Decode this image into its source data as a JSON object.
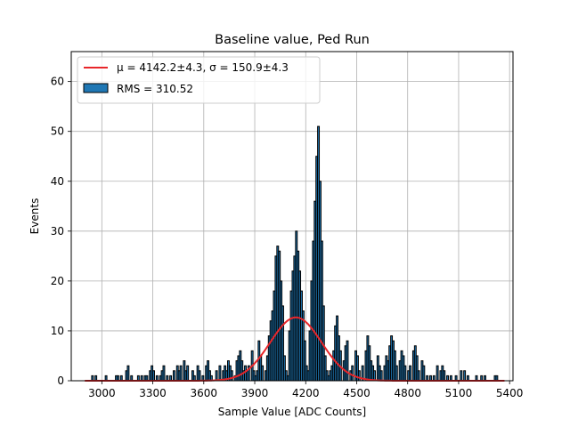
{
  "chart_data": {
    "type": "bar",
    "title": "Baseline value, Ped Run",
    "xlabel": "Sample Value [ADC Counts]",
    "ylabel": "Events",
    "xlim": [
      2820,
      5420
    ],
    "ylim": [
      0,
      66
    ],
    "grid": true,
    "legend_position": "upper-left",
    "xticks": [
      3000,
      3300,
      3600,
      3900,
      4200,
      4500,
      4800,
      5100,
      5400
    ],
    "yticks": [
      0,
      10,
      20,
      30,
      40,
      50,
      60
    ],
    "legend": [
      {
        "kind": "line",
        "label_prefix": "μ = 4142.2±4.3, ",
        "label_suffix": "σ = 150.9±4.3",
        "color": "#e8262a"
      },
      {
        "kind": "patch",
        "label": "RMS = 310.52",
        "color": "#1f77b4"
      }
    ],
    "histogram": {
      "color": "#1f77b4",
      "edgecolor": "#000000",
      "bins": [
        [
          2940,
          1
        ],
        [
          2960,
          1
        ],
        [
          3020,
          1
        ],
        [
          3080,
          1
        ],
        [
          3090,
          1
        ],
        [
          3110,
          1
        ],
        [
          3140,
          2
        ],
        [
          3150,
          3
        ],
        [
          3170,
          1
        ],
        [
          3210,
          1
        ],
        [
          3230,
          1
        ],
        [
          3250,
          1
        ],
        [
          3260,
          1
        ],
        [
          3280,
          2
        ],
        [
          3290,
          3
        ],
        [
          3300,
          2
        ],
        [
          3320,
          1
        ],
        [
          3340,
          1
        ],
        [
          3350,
          2
        ],
        [
          3360,
          3
        ],
        [
          3380,
          1
        ],
        [
          3400,
          1
        ],
        [
          3420,
          2
        ],
        [
          3440,
          3
        ],
        [
          3450,
          2
        ],
        [
          3460,
          3
        ],
        [
          3480,
          4
        ],
        [
          3490,
          2
        ],
        [
          3500,
          3
        ],
        [
          3530,
          2
        ],
        [
          3540,
          1
        ],
        [
          3560,
          3
        ],
        [
          3570,
          2
        ],
        [
          3590,
          1
        ],
        [
          3610,
          3
        ],
        [
          3620,
          4
        ],
        [
          3630,
          2
        ],
        [
          3640,
          1
        ],
        [
          3670,
          2
        ],
        [
          3690,
          3
        ],
        [
          3710,
          2
        ],
        [
          3720,
          3
        ],
        [
          3730,
          2
        ],
        [
          3740,
          4
        ],
        [
          3750,
          3
        ],
        [
          3760,
          2
        ],
        [
          3780,
          1
        ],
        [
          3790,
          4
        ],
        [
          3800,
          5
        ],
        [
          3810,
          6
        ],
        [
          3820,
          4
        ],
        [
          3830,
          2
        ],
        [
          3840,
          3
        ],
        [
          3850,
          2
        ],
        [
          3860,
          3
        ],
        [
          3880,
          6
        ],
        [
          3890,
          2
        ],
        [
          3900,
          1
        ],
        [
          3910,
          2
        ],
        [
          3920,
          8
        ],
        [
          3930,
          5
        ],
        [
          3940,
          3
        ],
        [
          3960,
          2
        ],
        [
          3970,
          5
        ],
        [
          3980,
          9
        ],
        [
          3990,
          12
        ],
        [
          4000,
          14
        ],
        [
          4010,
          18
        ],
        [
          4020,
          25
        ],
        [
          4030,
          27
        ],
        [
          4040,
          26
        ],
        [
          4050,
          20
        ],
        [
          4060,
          15
        ],
        [
          4070,
          5
        ],
        [
          4080,
          2
        ],
        [
          4090,
          1
        ],
        [
          4100,
          10
        ],
        [
          4110,
          18
        ],
        [
          4120,
          22
        ],
        [
          4130,
          25
        ],
        [
          4140,
          30
        ],
        [
          4150,
          26
        ],
        [
          4160,
          22
        ],
        [
          4170,
          18
        ],
        [
          4180,
          14
        ],
        [
          4190,
          8
        ],
        [
          4200,
          3
        ],
        [
          4210,
          2
        ],
        [
          4220,
          10
        ],
        [
          4230,
          20
        ],
        [
          4240,
          28
        ],
        [
          4250,
          36
        ],
        [
          4260,
          45
        ],
        [
          4270,
          51
        ],
        [
          4280,
          40
        ],
        [
          4290,
          28
        ],
        [
          4300,
          15
        ],
        [
          4310,
          5
        ],
        [
          4320,
          2
        ],
        [
          4330,
          1
        ],
        [
          4340,
          2
        ],
        [
          4350,
          3
        ],
        [
          4360,
          6
        ],
        [
          4370,
          11
        ],
        [
          4380,
          13
        ],
        [
          4390,
          9
        ],
        [
          4400,
          6
        ],
        [
          4420,
          4
        ],
        [
          4430,
          7
        ],
        [
          4440,
          8
        ],
        [
          4460,
          2
        ],
        [
          4470,
          3
        ],
        [
          4490,
          6
        ],
        [
          4500,
          5
        ],
        [
          4510,
          2
        ],
        [
          4530,
          3
        ],
        [
          4550,
          6
        ],
        [
          4560,
          9
        ],
        [
          4570,
          7
        ],
        [
          4580,
          4
        ],
        [
          4590,
          3
        ],
        [
          4600,
          2
        ],
        [
          4620,
          5
        ],
        [
          4630,
          3
        ],
        [
          4640,
          2
        ],
        [
          4660,
          3
        ],
        [
          4670,
          5
        ],
        [
          4680,
          4
        ],
        [
          4690,
          7
        ],
        [
          4700,
          9
        ],
        [
          4710,
          8
        ],
        [
          4720,
          6
        ],
        [
          4730,
          3
        ],
        [
          4750,
          4
        ],
        [
          4760,
          6
        ],
        [
          4770,
          5
        ],
        [
          4780,
          3
        ],
        [
          4800,
          2
        ],
        [
          4810,
          3
        ],
        [
          4830,
          6
        ],
        [
          4840,
          7
        ],
        [
          4850,
          5
        ],
        [
          4860,
          2
        ],
        [
          4880,
          4
        ],
        [
          4890,
          3
        ],
        [
          4910,
          1
        ],
        [
          4930,
          1
        ],
        [
          4950,
          1
        ],
        [
          4970,
          3
        ],
        [
          4990,
          2
        ],
        [
          5000,
          3
        ],
        [
          5010,
          2
        ],
        [
          5030,
          1
        ],
        [
          5050,
          1
        ],
        [
          5080,
          1
        ],
        [
          5110,
          2
        ],
        [
          5130,
          2
        ],
        [
          5150,
          1
        ],
        [
          5200,
          1
        ],
        [
          5230,
          1
        ],
        [
          5250,
          1
        ],
        [
          5310,
          1
        ],
        [
          5320,
          1
        ]
      ]
    },
    "fit": {
      "type": "gaussian",
      "mu": 4142.2,
      "sigma": 150.9,
      "amplitude": 12.7,
      "x_range": [
        2900,
        5370
      ],
      "color": "#e8262a"
    }
  }
}
